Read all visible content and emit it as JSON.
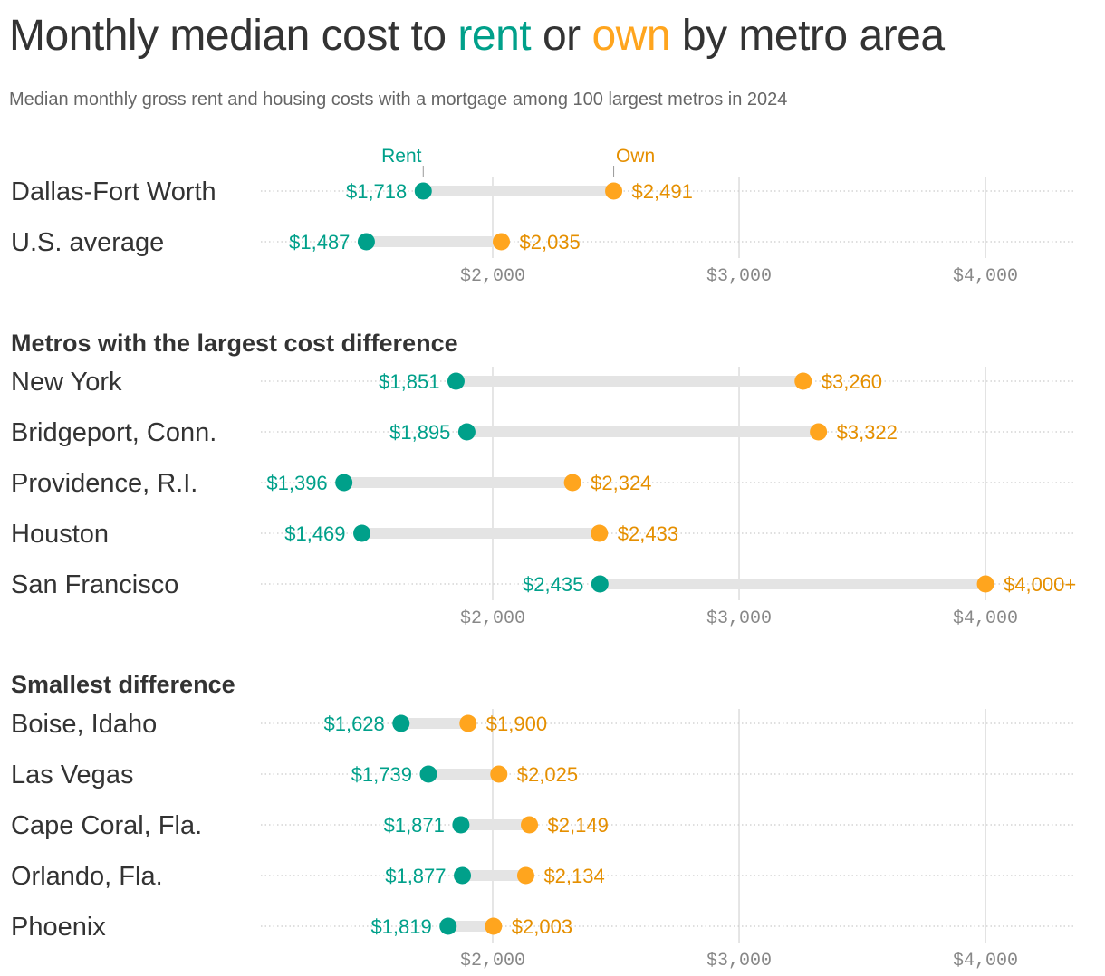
{
  "title": {
    "pre": "Monthly median cost to ",
    "rent": "rent",
    "mid": " or ",
    "own": "own",
    "post": " by metro area"
  },
  "subtitle": "Median monthly gross rent and housing costs with a mortgage among 100 largest metros in 2024",
  "colors": {
    "rent": "#00a08a",
    "own_dot": "#ffa51e",
    "own_text": "#e58f00",
    "bar": "#e4e4e4",
    "grid": "#dddddd",
    "axis_text": "#888888",
    "label": "#333333"
  },
  "chart_data": {
    "type": "dumbbell",
    "legend": {
      "rent": "Rent",
      "own": "Own"
    },
    "xlim": [
      1059,
      4360
    ],
    "ticks": [
      2000,
      3000,
      4000
    ],
    "tick_labels": [
      "$2,000",
      "$3,000",
      "$4,000"
    ],
    "grid": true,
    "panels": [
      {
        "title": "",
        "rows": [
          {
            "label": "Dallas-Fort Worth",
            "rent": 1718,
            "own": 2491,
            "rent_label": "$1,718",
            "own_label": "$2,491"
          },
          {
            "label": "U.S. average",
            "rent": 1487,
            "own": 2035,
            "rent_label": "$1,487",
            "own_label": "$2,035"
          }
        ]
      },
      {
        "title": "Metros with the largest cost difference",
        "rows": [
          {
            "label": "New York",
            "rent": 1851,
            "own": 3260,
            "rent_label": "$1,851",
            "own_label": "$3,260"
          },
          {
            "label": "Bridgeport, Conn.",
            "rent": 1895,
            "own": 3322,
            "rent_label": "$1,895",
            "own_label": "$3,322"
          },
          {
            "label": "Providence, R.I.",
            "rent": 1396,
            "own": 2324,
            "rent_label": "$1,396",
            "own_label": "$2,324"
          },
          {
            "label": "Houston",
            "rent": 1469,
            "own": 2433,
            "rent_label": "$1,469",
            "own_label": "$2,433"
          },
          {
            "label": "San Francisco",
            "rent": 2435,
            "own": 4000,
            "rent_label": "$2,435",
            "own_label": "$4,000+"
          }
        ]
      },
      {
        "title": "Smallest difference",
        "rows": [
          {
            "label": "Boise, Idaho",
            "rent": 1628,
            "own": 1900,
            "rent_label": "$1,628",
            "own_label": "$1,900"
          },
          {
            "label": "Las Vegas",
            "rent": 1739,
            "own": 2025,
            "rent_label": "$1,739",
            "own_label": "$2,025"
          },
          {
            "label": "Cape Coral, Fla.",
            "rent": 1871,
            "own": 2149,
            "rent_label": "$1,871",
            "own_label": "$2,149"
          },
          {
            "label": "Orlando, Fla.",
            "rent": 1877,
            "own": 2134,
            "rent_label": "$1,877",
            "own_label": "$2,134"
          },
          {
            "label": "Phoenix",
            "rent": 1819,
            "own": 2003,
            "rent_label": "$1,819",
            "own_label": "$2,003"
          }
        ]
      }
    ]
  }
}
